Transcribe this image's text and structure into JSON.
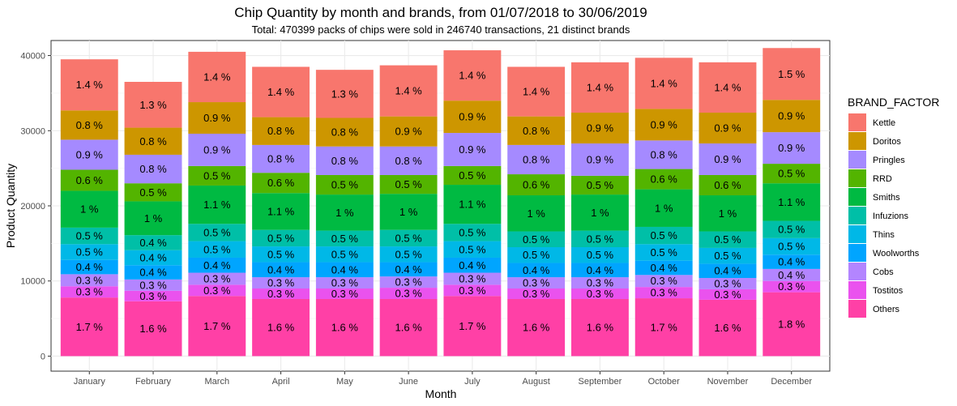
{
  "chart_data": {
    "type": "bar",
    "stacked": true,
    "title": "Chip Quantity by month and brands, from 01/07/2018 to 30/06/2019",
    "subtitle": "Total: 470399 packs of chips were sold in 246740 transactions, 21 distinct brands",
    "xlabel": "Month",
    "ylabel": "Product Quantity",
    "ylim": [
      -2000,
      42000
    ],
    "yticks": [
      0,
      10000,
      20000,
      30000,
      40000
    ],
    "grid": true,
    "legend_title": "BRAND_FACTOR",
    "legend_position": "right",
    "categories": [
      "January",
      "February",
      "March",
      "April",
      "May",
      "June",
      "July",
      "August",
      "September",
      "October",
      "November",
      "December"
    ],
    "series": [
      {
        "name": "Others",
        "color": "#FF40A6",
        "values": [
          7800,
          7300,
          8000,
          7600,
          7600,
          7600,
          8000,
          7600,
          7600,
          7700,
          7500,
          8500
        ],
        "labels": [
          "1.7 %",
          "1.6 %",
          "1.7 %",
          "1.6 %",
          "1.6 %",
          "1.6 %",
          "1.7 %",
          "1.6 %",
          "1.6 %",
          "1.7 %",
          "1.6 %",
          "1.8 %"
        ]
      },
      {
        "name": "Tostitos",
        "color": "#EA52EE",
        "values": [
          1500,
          1400,
          1500,
          1400,
          1400,
          1500,
          1500,
          1400,
          1400,
          1500,
          1400,
          1500
        ],
        "labels": [
          "0.3 %",
          "0.3 %",
          "0.3 %",
          "0.3 %",
          "0.3 %",
          "0.3 %",
          "0.3 %",
          "0.3 %",
          "0.3 %",
          "0.3 %",
          "0.3 %",
          "0.3 %"
        ]
      },
      {
        "name": "Cobs",
        "color": "#B385FF",
        "values": [
          1600,
          1500,
          1600,
          1500,
          1500,
          1500,
          1600,
          1500,
          1500,
          1600,
          1500,
          1600
        ],
        "labels": [
          "0.3 %",
          "0.3 %",
          "0.3 %",
          "0.3 %",
          "0.3 %",
          "0.3 %",
          "0.3 %",
          "0.3 %",
          "0.3 %",
          "0.3 %",
          "0.3 %",
          "0.4 %"
        ]
      },
      {
        "name": "Woolworths",
        "color": "#00A5FF",
        "values": [
          1900,
          1900,
          2000,
          2000,
          2000,
          1900,
          2000,
          1900,
          1900,
          1900,
          1900,
          1900
        ],
        "labels": [
          "0.4 %",
          "0.4 %",
          "0.4 %",
          "0.4 %",
          "0.4 %",
          "0.4 %",
          "0.4 %",
          "0.4 %",
          "0.4 %",
          "0.4 %",
          "0.4 %",
          "0.4 %"
        ]
      },
      {
        "name": "Thins",
        "color": "#00B8E7",
        "values": [
          2100,
          2000,
          2200,
          2100,
          2100,
          2100,
          2200,
          2100,
          2100,
          2200,
          2100,
          2200
        ],
        "labels": [
          "0.5 %",
          "0.4 %",
          "0.5 %",
          "0.5 %",
          "0.5 %",
          "0.5 %",
          "0.5 %",
          "0.5 %",
          "0.5 %",
          "0.5 %",
          "0.5 %",
          "0.5 %"
        ]
      },
      {
        "name": "Infuzions",
        "color": "#00BFA7",
        "values": [
          2200,
          2000,
          2300,
          2200,
          2100,
          2200,
          2300,
          2100,
          2200,
          2300,
          2200,
          2300
        ],
        "labels": [
          "0.5 %",
          "0.4 %",
          "0.5 %",
          "0.5 %",
          "0.5 %",
          "0.5 %",
          "0.5 %",
          "0.5 %",
          "0.5 %",
          "0.5 %",
          "0.5 %",
          "0.5 %"
        ]
      },
      {
        "name": "Smiths",
        "color": "#00BA42",
        "values": [
          4900,
          4500,
          5100,
          4900,
          4800,
          4800,
          5200,
          4800,
          4800,
          5000,
          4800,
          5000
        ],
        "labels": [
          "1 %",
          "1 %",
          "1.1 %",
          "1.1 %",
          "1 %",
          "1 %",
          "1.1 %",
          "1 %",
          "1 %",
          "1 %",
          "1 %",
          "1.1 %"
        ]
      },
      {
        "name": "RRD",
        "color": "#53B400",
        "values": [
          2800,
          2400,
          2600,
          2700,
          2600,
          2500,
          2500,
          2800,
          2500,
          2700,
          2700,
          2600
        ],
        "labels": [
          "0.6 %",
          "0.5 %",
          "0.5 %",
          "0.6 %",
          "0.5 %",
          "0.5 %",
          "0.5 %",
          "0.6 %",
          "0.5 %",
          "0.6 %",
          "0.6 %",
          "0.5 %"
        ]
      },
      {
        "name": "Pringles",
        "color": "#A58AFF",
        "values": [
          4000,
          3800,
          4300,
          3700,
          3800,
          3800,
          4400,
          3900,
          4300,
          3800,
          4200,
          4200
        ],
        "labels": [
          "0.9 %",
          "0.8 %",
          "0.9 %",
          "0.8 %",
          "0.8 %",
          "0.8 %",
          "0.9 %",
          "0.8 %",
          "0.9 %",
          "0.8 %",
          "0.9 %",
          "0.9 %"
        ]
      },
      {
        "name": "Doritos",
        "color": "#CD9600",
        "values": [
          3900,
          3600,
          4200,
          3700,
          3800,
          4000,
          4300,
          3800,
          4100,
          4200,
          4100,
          4300
        ],
        "labels": [
          "0.8 %",
          "0.8 %",
          "0.9 %",
          "0.8 %",
          "0.8 %",
          "0.9 %",
          "0.9 %",
          "0.8 %",
          "0.9 %",
          "0.9 %",
          "0.9 %",
          "0.9 %"
        ]
      },
      {
        "name": "Kettle",
        "color": "#F8766D",
        "values": [
          6800,
          6100,
          6700,
          6700,
          6400,
          6800,
          6700,
          6600,
          6700,
          6800,
          6700,
          6900
        ],
        "labels": [
          "1.4 %",
          "1.3 %",
          "1.4 %",
          "1.4 %",
          "1.3 %",
          "1.4 %",
          "1.4 %",
          "1.4 %",
          "1.4 %",
          "1.4 %",
          "1.4 %",
          "1.5 %"
        ]
      }
    ],
    "legend_order": [
      "Kettle",
      "Doritos",
      "Pringles",
      "RRD",
      "Smiths",
      "Infuzions",
      "Thins",
      "Woolworths",
      "Cobs",
      "Tostitos",
      "Others"
    ]
  }
}
